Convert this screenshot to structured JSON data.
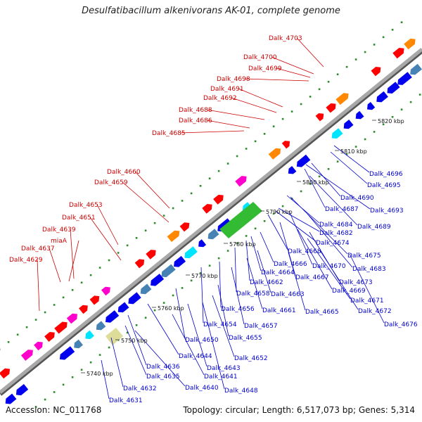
{
  "title": "Desulfatibacillum alkenivorans AK-01, complete genome",
  "footer": {
    "accession": "Accession: NC_011768",
    "topology": "Topology: circular; Length: 6,517,073 bp; Genes: 5,314"
  },
  "colors": {
    "backbone": "#8a8a8a",
    "forward_gene": "#ff0000",
    "reverse_gene": "#0000ee",
    "forward_label": "#cc0000",
    "reverse_label": "#0000cc",
    "tick_dot": "#2e8b2e"
  },
  "scale_labels": [
    "5740 kbp",
    "5750 kbp",
    "5760 kbp",
    "5770 kbp",
    "5780 kbp",
    "5790 kbp",
    "5800 kbp",
    "5810 kbp",
    "5820 kbp"
  ],
  "forward_labels": [
    "Dalk_4703",
    "Dalk_4700",
    "Dalk_4699",
    "Dalk_4698",
    "Dalk_4691",
    "Dalk_4692",
    "Dalk_4688",
    "Dalk_4686",
    "Dalk_4685",
    "Dalk_4660",
    "Dalk_4659",
    "Dalk_4653",
    "Dalk_4651",
    "Dalk_4639",
    "miaA",
    "Dalk_4637",
    "Dalk_4629"
  ],
  "reverse_labels": [
    "Dalk_4696",
    "Dalk_4695",
    "Dalk_4690",
    "Dalk_4687",
    "Dalk_4693",
    "Dalk_4684",
    "Dalk_4689",
    "Dalk_4682",
    "Dalk_4674",
    "Dalk_4668",
    "Dalk_4675",
    "Dalk_4666",
    "Dalk_4670",
    "Dalk_4683",
    "Dalk_4664",
    "Dalk_4667",
    "Dalk_4673",
    "Dalk_4662",
    "Dalk_4669",
    "Dalk_4658",
    "Dalk_4663",
    "Dalk_4671",
    "Dalk_4656",
    "Dalk_4661",
    "Dalk_4665",
    "Dalk_4672",
    "Dalk_4654",
    "Dalk_4657",
    "Dalk_4676",
    "Dalk_4650",
    "Dalk_4655",
    "Dalk_4644",
    "Dalk_4652",
    "Dalk_4636",
    "Dalk_4643",
    "Dalk_4635",
    "Dalk_4641",
    "Dalk_4640",
    "Dalk_4648",
    "Dalk_4632",
    "Dalk_4631"
  ]
}
